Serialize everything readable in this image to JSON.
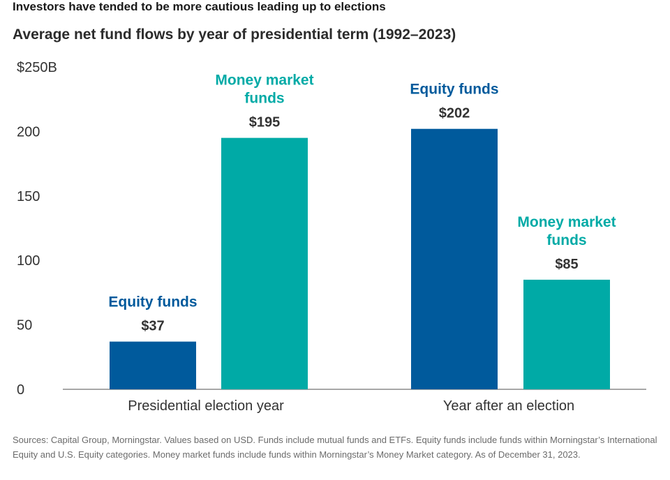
{
  "header": {
    "headline": "Investors have tended to be more cautious leading up to elections"
  },
  "chart_data": {
    "type": "bar",
    "title": "Average net fund flows by year of presidential term (1992–2023)",
    "categories": [
      "Presidential election year",
      "Year after an election"
    ],
    "series": [
      {
        "values": [
          37,
          202
        ],
        "bar_labels": [
          "Equity funds",
          "Equity funds"
        ],
        "value_labels": [
          "$37",
          "$202"
        ],
        "color": "#005a9c"
      },
      {
        "values": [
          195,
          85
        ],
        "bar_labels": [
          "Money market funds",
          "Money market funds"
        ],
        "value_labels": [
          "$195",
          "$85"
        ],
        "color": "#00aaa6"
      }
    ],
    "ylim": [
      0,
      250
    ],
    "yticks": [
      0,
      50,
      100,
      150,
      200,
      250
    ],
    "ytick_labels": [
      "0",
      "50",
      "100",
      "150",
      "200",
      "$250B"
    ],
    "xlabel": "",
    "ylabel": "",
    "grid": false,
    "legend": "none"
  },
  "footer": {
    "source": "Sources: Capital Group, Morningstar. Values based on USD. Funds include mutual funds and ETFs. Equity funds include funds within Morningstar’s International Equity and U.S. Equity categories. Money market funds include funds within Morningstar’s Money Market category. As of December 31, 2023."
  },
  "colors": {
    "equity": "#005a9c",
    "money_market": "#00aaa6",
    "axis": "#8a8a8a",
    "text": "#333333"
  }
}
